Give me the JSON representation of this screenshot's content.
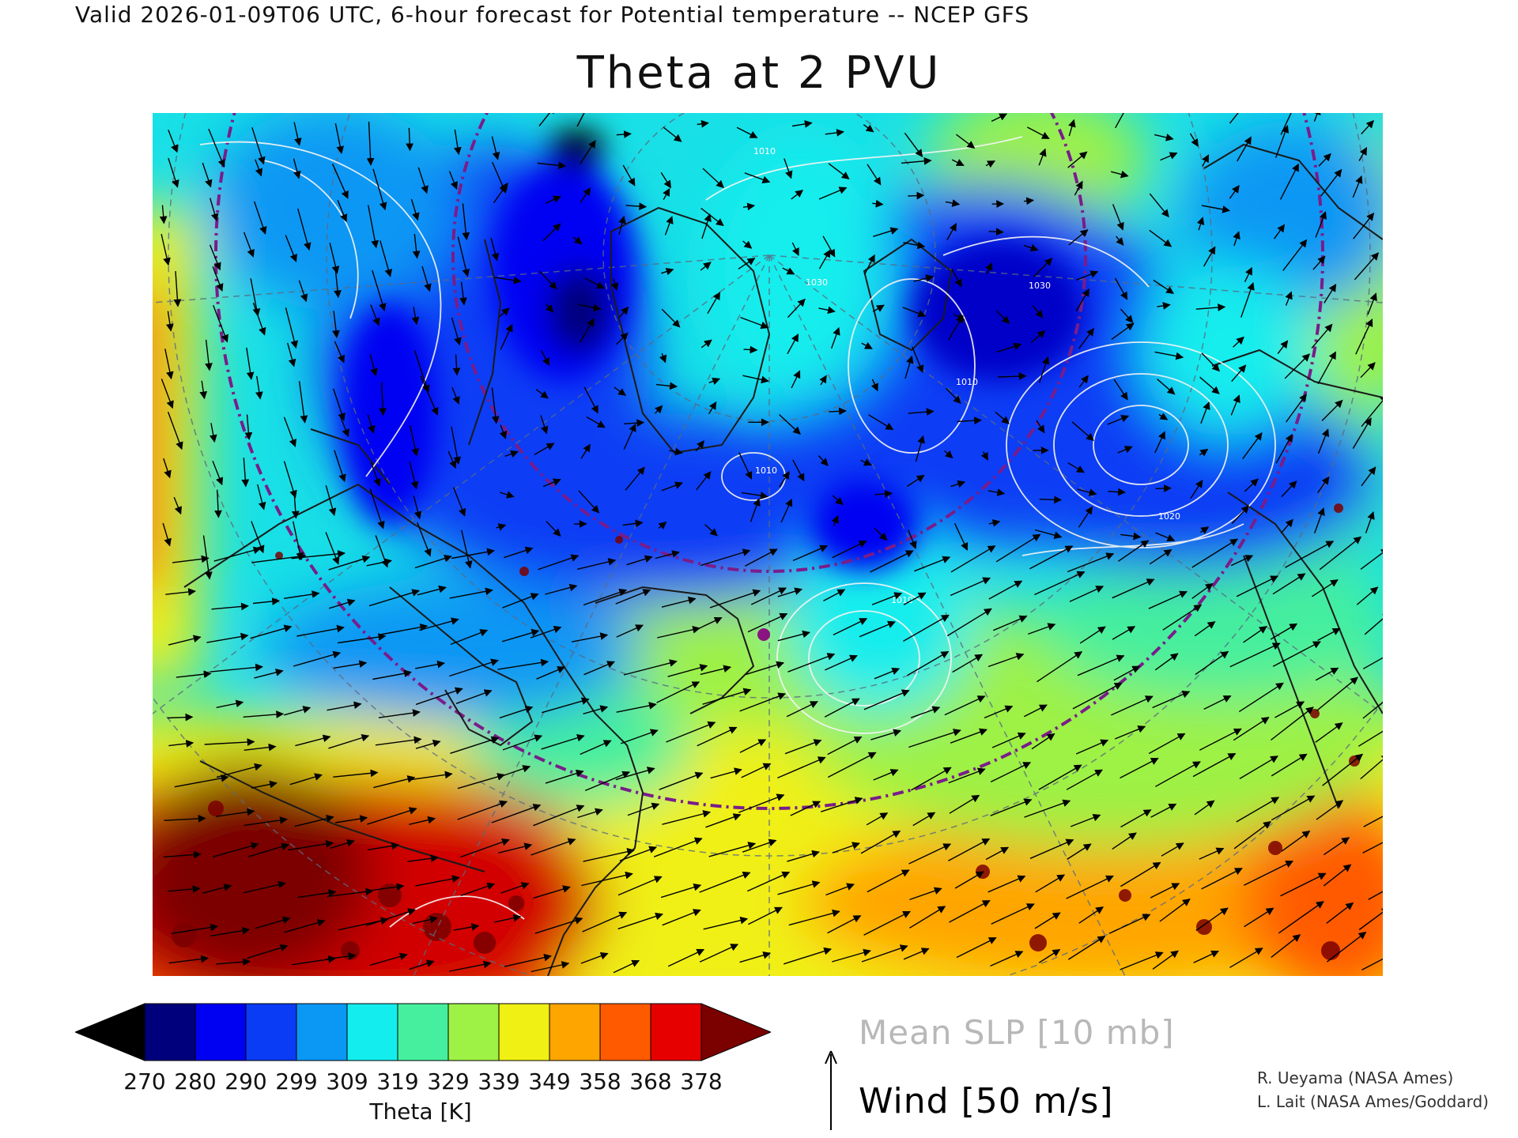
{
  "header": {
    "valid_line": "Valid 2026-01-09T06 UTC, 6-hour forecast for Potential temperature -- NCEP GFS"
  },
  "title": "Theta at 2 PVU",
  "map": {
    "projection": "polar stereographic, North Atlantic / Arctic sector",
    "region": "North America, Greenland, North Atlantic, Europe",
    "shading_variable": "Potential temperature on 2 PVU surface",
    "overlays": [
      "mean sea-level pressure contours (white)",
      "wind vectors (black arrows)",
      "dashed latitude/longitude graticule",
      "purple dash-dot latitude circles",
      "coastlines and borders"
    ],
    "contour_labels_visible": [
      "1010",
      "1020",
      "1030"
    ]
  },
  "colorbar": {
    "ticks": [
      "270",
      "280",
      "290",
      "299",
      "309",
      "319",
      "329",
      "339",
      "349",
      "358",
      "368",
      "378"
    ],
    "colors": [
      "#000000",
      "#00007c",
      "#0000f2",
      "#0a3cf5",
      "#0b97f4",
      "#14eded",
      "#45ef9e",
      "#9ef145",
      "#f0f014",
      "#ffa500",
      "#ff5a00",
      "#e60000",
      "#7b0000"
    ],
    "label": "Theta [K]"
  },
  "legend": {
    "slp_label": "Mean SLP [10 mb]",
    "wind_label": "Wind [50 m/s]"
  },
  "credits": {
    "line1": "R. Ueyama (NASA Ames)",
    "line2": "L. Lait (NASA Ames/Goddard)"
  }
}
